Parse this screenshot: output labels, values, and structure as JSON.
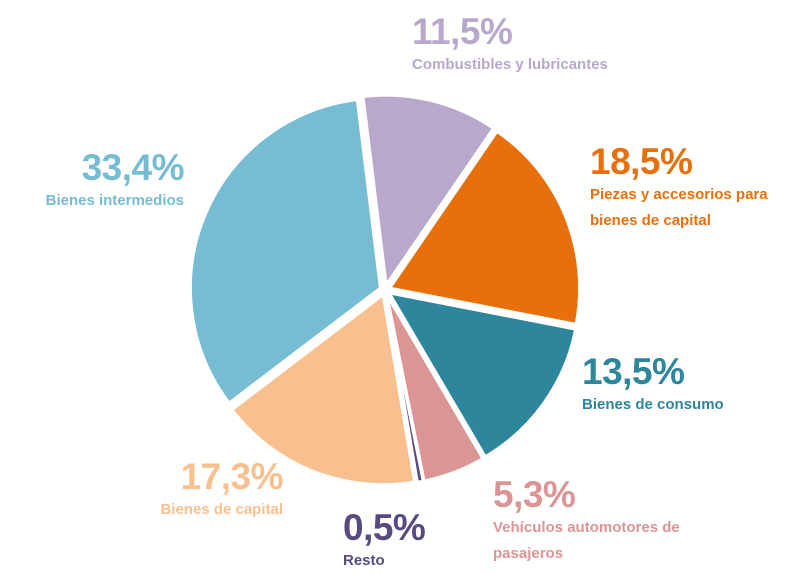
{
  "chart_data": {
    "type": "pie",
    "categories": [
      "Combustibles y lubricantes",
      "Piezas y accesorios para bienes de capital",
      "Bienes de consumo",
      "Vehículos automotores de pasajeros",
      "Resto",
      "Bienes de capital",
      "Bienes intermedios"
    ],
    "values": [
      11.5,
      18.5,
      13.5,
      5.3,
      0.5,
      17.3,
      33.4
    ],
    "value_labels": [
      "11,5%",
      "18,5%",
      "13,5%",
      "5,3%",
      "0,5%",
      "17,3%",
      "33,4%"
    ],
    "colors": [
      "#b7a8cc",
      "#e8700c",
      "#2e869c",
      "#dc9595",
      "#5a4a82",
      "#f8c08e",
      "#76bdd4"
    ]
  }
}
